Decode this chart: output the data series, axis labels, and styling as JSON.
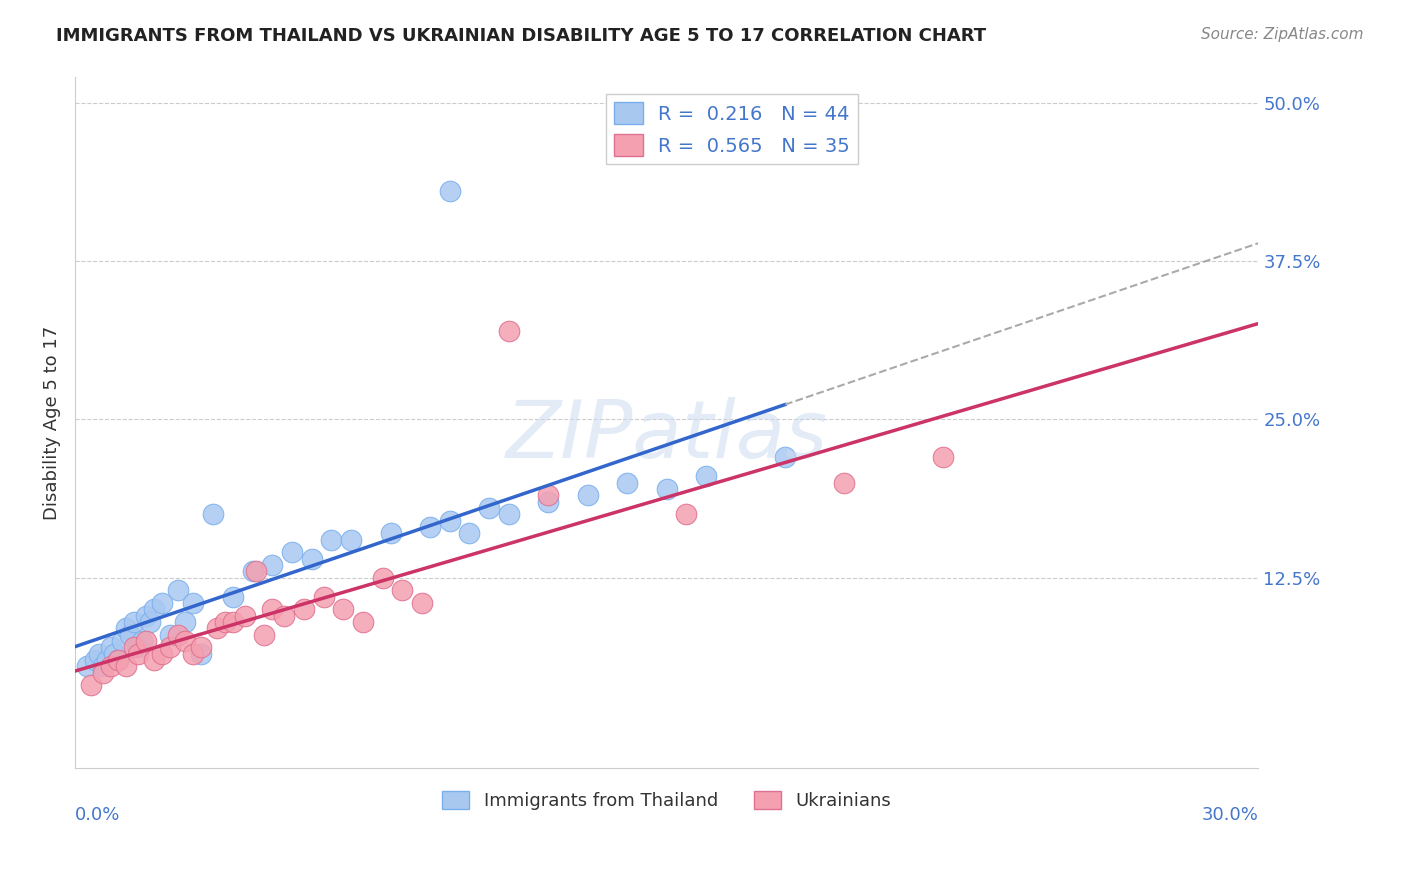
{
  "title": "IMMIGRANTS FROM THAILAND VS UKRAINIAN DISABILITY AGE 5 TO 17 CORRELATION CHART",
  "source": "Source: ZipAtlas.com",
  "ylabel": "Disability Age 5 to 17",
  "xmin": 0.0,
  "xmax": 0.3,
  "ymin": -0.025,
  "ymax": 0.52,
  "thailand_color": "#a8c8f0",
  "ukrainian_color": "#f4a0b0",
  "thailand_edge_color": "#7aafee",
  "ukrainian_edge_color": "#e07090",
  "thailand_line_color": "#3366cc",
  "ukrainian_line_color": "#cc3366",
  "watermark": "ZIPatlas",
  "thailand_R": 0.216,
  "ukrainian_R": 0.565,
  "thailand_N": 44,
  "ukrainian_N": 35,
  "thailand_points": [
    [
      0.003,
      0.055
    ],
    [
      0.005,
      0.06
    ],
    [
      0.006,
      0.065
    ],
    [
      0.007,
      0.055
    ],
    [
      0.008,
      0.06
    ],
    [
      0.009,
      0.07
    ],
    [
      0.01,
      0.065
    ],
    [
      0.011,
      0.06
    ],
    [
      0.012,
      0.075
    ],
    [
      0.013,
      0.085
    ],
    [
      0.014,
      0.08
    ],
    [
      0.015,
      0.09
    ],
    [
      0.016,
      0.07
    ],
    [
      0.017,
      0.075
    ],
    [
      0.018,
      0.095
    ],
    [
      0.019,
      0.09
    ],
    [
      0.02,
      0.1
    ],
    [
      0.022,
      0.105
    ],
    [
      0.024,
      0.08
    ],
    [
      0.026,
      0.115
    ],
    [
      0.028,
      0.09
    ],
    [
      0.03,
      0.105
    ],
    [
      0.032,
      0.065
    ],
    [
      0.035,
      0.175
    ],
    [
      0.04,
      0.11
    ],
    [
      0.045,
      0.13
    ],
    [
      0.05,
      0.135
    ],
    [
      0.055,
      0.145
    ],
    [
      0.06,
      0.14
    ],
    [
      0.065,
      0.155
    ],
    [
      0.07,
      0.155
    ],
    [
      0.08,
      0.16
    ],
    [
      0.09,
      0.165
    ],
    [
      0.095,
      0.17
    ],
    [
      0.1,
      0.16
    ],
    [
      0.105,
      0.18
    ],
    [
      0.11,
      0.175
    ],
    [
      0.12,
      0.185
    ],
    [
      0.13,
      0.19
    ],
    [
      0.14,
      0.2
    ],
    [
      0.15,
      0.195
    ],
    [
      0.16,
      0.205
    ],
    [
      0.18,
      0.22
    ],
    [
      0.095,
      0.43
    ]
  ],
  "ukrainian_points": [
    [
      0.004,
      0.04
    ],
    [
      0.007,
      0.05
    ],
    [
      0.009,
      0.055
    ],
    [
      0.011,
      0.06
    ],
    [
      0.013,
      0.055
    ],
    [
      0.015,
      0.07
    ],
    [
      0.016,
      0.065
    ],
    [
      0.018,
      0.075
    ],
    [
      0.02,
      0.06
    ],
    [
      0.022,
      0.065
    ],
    [
      0.024,
      0.07
    ],
    [
      0.026,
      0.08
    ],
    [
      0.028,
      0.075
    ],
    [
      0.03,
      0.065
    ],
    [
      0.032,
      0.07
    ],
    [
      0.036,
      0.085
    ],
    [
      0.038,
      0.09
    ],
    [
      0.04,
      0.09
    ],
    [
      0.043,
      0.095
    ],
    [
      0.046,
      0.13
    ],
    [
      0.048,
      0.08
    ],
    [
      0.05,
      0.1
    ],
    [
      0.053,
      0.095
    ],
    [
      0.058,
      0.1
    ],
    [
      0.063,
      0.11
    ],
    [
      0.068,
      0.1
    ],
    [
      0.073,
      0.09
    ],
    [
      0.078,
      0.125
    ],
    [
      0.083,
      0.115
    ],
    [
      0.088,
      0.105
    ],
    [
      0.12,
      0.19
    ],
    [
      0.155,
      0.175
    ],
    [
      0.195,
      0.2
    ],
    [
      0.22,
      0.22
    ],
    [
      0.11,
      0.32
    ]
  ]
}
